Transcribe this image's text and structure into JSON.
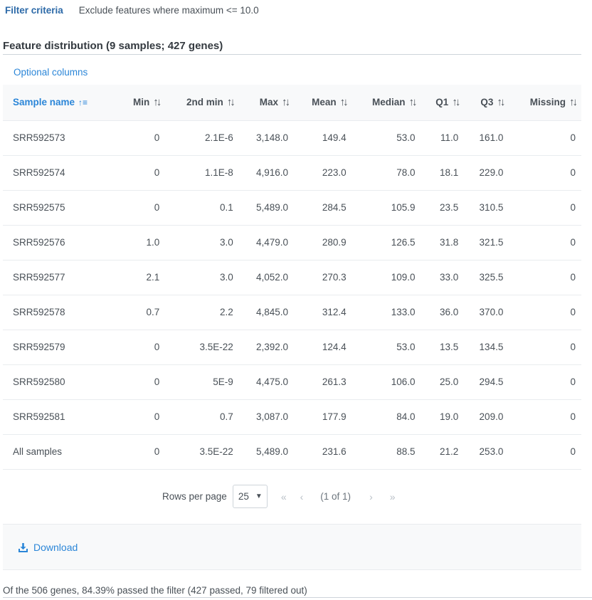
{
  "filter": {
    "label": "Filter criteria",
    "value": "Exclude features where maximum <= 10.0"
  },
  "section_title": "Feature distribution (9 samples; 427 genes)",
  "optional_columns_label": "Optional columns",
  "table": {
    "columns": [
      {
        "label": "Sample name",
        "sorted": true
      },
      {
        "label": "Min",
        "sorted": false
      },
      {
        "label": "2nd min",
        "sorted": false
      },
      {
        "label": "Max",
        "sorted": false
      },
      {
        "label": "Mean",
        "sorted": false
      },
      {
        "label": "Median",
        "sorted": false
      },
      {
        "label": "Q1",
        "sorted": false
      },
      {
        "label": "Q3",
        "sorted": false
      },
      {
        "label": "Missing",
        "sorted": false
      }
    ],
    "rows": [
      [
        "SRR592573",
        "0",
        "2.1E-6",
        "3,148.0",
        "149.4",
        "53.0",
        "11.0",
        "161.0",
        "0"
      ],
      [
        "SRR592574",
        "0",
        "1.1E-8",
        "4,916.0",
        "223.0",
        "78.0",
        "18.1",
        "229.0",
        "0"
      ],
      [
        "SRR592575",
        "0",
        "0.1",
        "5,489.0",
        "284.5",
        "105.9",
        "23.5",
        "310.5",
        "0"
      ],
      [
        "SRR592576",
        "1.0",
        "3.0",
        "4,479.0",
        "280.9",
        "126.5",
        "31.8",
        "321.5",
        "0"
      ],
      [
        "SRR592577",
        "2.1",
        "3.0",
        "4,052.0",
        "270.3",
        "109.0",
        "33.0",
        "325.5",
        "0"
      ],
      [
        "SRR592578",
        "0.7",
        "2.2",
        "4,845.0",
        "312.4",
        "133.0",
        "36.0",
        "370.0",
        "0"
      ],
      [
        "SRR592579",
        "0",
        "3.5E-22",
        "2,392.0",
        "124.4",
        "53.0",
        "13.5",
        "134.5",
        "0"
      ],
      [
        "SRR592580",
        "0",
        "5E-9",
        "4,475.0",
        "261.3",
        "106.0",
        "25.0",
        "294.5",
        "0"
      ],
      [
        "SRR592581",
        "0",
        "0.7",
        "3,087.0",
        "177.9",
        "84.0",
        "19.0",
        "209.0",
        "0"
      ],
      [
        "All samples",
        "0",
        "3.5E-22",
        "5,489.0",
        "231.6",
        "88.5",
        "21.2",
        "253.0",
        "0"
      ]
    ]
  },
  "pagination": {
    "rows_per_page_label": "Rows per page",
    "rows_per_page_value": "25",
    "first_icon": "«",
    "prev_icon": "‹",
    "page_info": "(1 of 1)",
    "next_icon": "›",
    "last_icon": "»"
  },
  "download_label": "Download",
  "summary_text": "Of the 506 genes, 84.39% passed the filter (427 passed, 79 filtered out)",
  "colors": {
    "accent": "#2b86d8",
    "header_bg": "#f8f9fa",
    "text": "#495057"
  }
}
